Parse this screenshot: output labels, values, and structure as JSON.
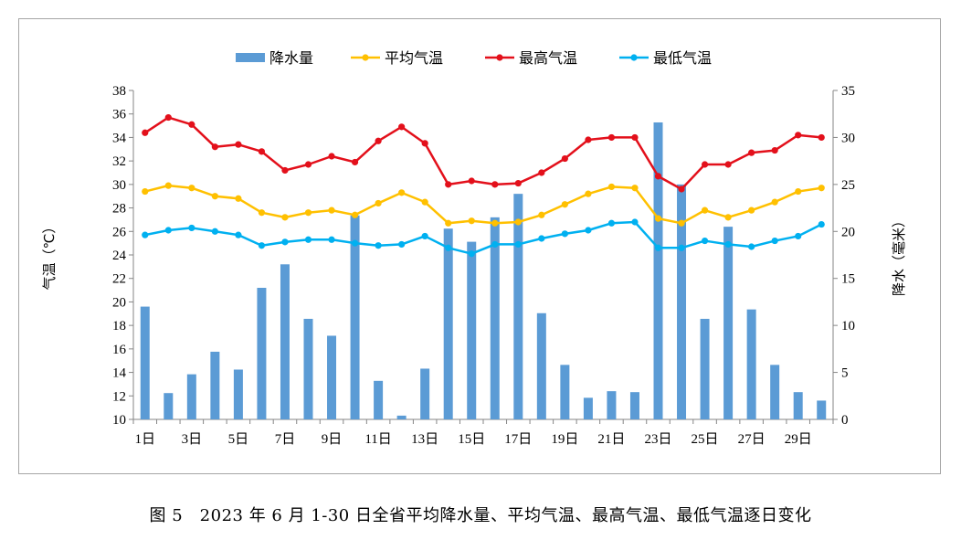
{
  "chart_data": {
    "type": "bar+line",
    "categories": [
      "1日",
      "2日",
      "3日",
      "4日",
      "5日",
      "6日",
      "7日",
      "8日",
      "9日",
      "10日",
      "11日",
      "12日",
      "13日",
      "14日",
      "15日",
      "16日",
      "17日",
      "18日",
      "19日",
      "20日",
      "21日",
      "22日",
      "23日",
      "24日",
      "25日",
      "26日",
      "27日",
      "28日",
      "29日",
      "30日"
    ],
    "x_tick_labels": [
      "1日",
      "3日",
      "5日",
      "7日",
      "9日",
      "11日",
      "13日",
      "15日",
      "17日",
      "19日",
      "21日",
      "23日",
      "25日",
      "27日",
      "29日"
    ],
    "ylabel_left": "气温（℃）",
    "ylabel_right": "降水（毫米）",
    "ylim_left": [
      10,
      38
    ],
    "ylim_right": [
      0,
      35
    ],
    "yticks_left": [
      "10",
      "12",
      "14",
      "16",
      "18",
      "20",
      "22",
      "24",
      "26",
      "28",
      "30",
      "32",
      "34",
      "36",
      "38"
    ],
    "yticks_right": [
      "0",
      "5",
      "10",
      "15",
      "20",
      "25",
      "30",
      "35"
    ],
    "legend_position": "top",
    "grid": false,
    "series": [
      {
        "name": "降水量",
        "kind": "bar",
        "axis": "right",
        "color": "#5b9bd5",
        "values": [
          12.0,
          2.8,
          4.8,
          7.2,
          5.3,
          14.0,
          16.5,
          10.7,
          8.9,
          21.7,
          4.1,
          0.4,
          5.4,
          20.3,
          18.9,
          21.5,
          24.0,
          11.3,
          5.8,
          2.3,
          3.0,
          2.9,
          31.6,
          25.0,
          10.7,
          20.5,
          11.7,
          5.8,
          2.9,
          2.0
        ]
      },
      {
        "name": "平均气温",
        "kind": "line",
        "axis": "left",
        "color": "#ffc000",
        "values": [
          29.4,
          29.9,
          29.7,
          29.0,
          28.8,
          27.6,
          27.2,
          27.6,
          27.8,
          27.4,
          28.4,
          29.3,
          28.5,
          26.7,
          26.9,
          26.7,
          26.8,
          27.4,
          28.3,
          29.2,
          29.8,
          29.7,
          27.1,
          26.7,
          27.8,
          27.2,
          27.8,
          28.5,
          29.4,
          29.7
        ]
      },
      {
        "name": "最高气温",
        "kind": "line",
        "axis": "left",
        "color": "#e3101b",
        "values": [
          34.4,
          35.7,
          35.1,
          33.2,
          33.4,
          32.8,
          31.2,
          31.7,
          32.4,
          31.9,
          33.7,
          34.9,
          33.5,
          30.0,
          30.3,
          30.0,
          30.1,
          31.0,
          32.2,
          33.8,
          34.0,
          34.0,
          30.7,
          29.6,
          31.7,
          31.7,
          32.7,
          32.9,
          34.2,
          34.0
        ]
      },
      {
        "name": "最低气温",
        "kind": "line",
        "axis": "left",
        "color": "#00b0f0",
        "values": [
          25.7,
          26.1,
          26.3,
          26.0,
          25.7,
          24.8,
          25.1,
          25.3,
          25.3,
          25.0,
          24.8,
          24.9,
          25.6,
          24.6,
          24.1,
          24.9,
          24.9,
          25.4,
          25.8,
          26.1,
          26.7,
          26.8,
          24.6,
          24.6,
          25.2,
          24.9,
          24.7,
          25.2,
          25.6,
          26.6
        ]
      }
    ]
  },
  "caption": "图 5　2023 年 6 月 1-30 日全省平均降水量、平均气温、最高气温、最低气温逐日变化"
}
